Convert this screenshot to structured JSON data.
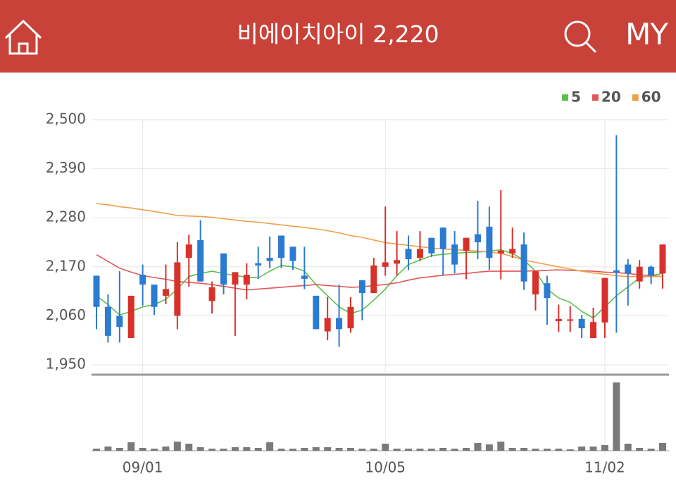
{
  "header": {
    "title": "비에이치아이 2,220",
    "menu": "MY"
  },
  "chart_data": {
    "type": "candlestick",
    "categories": [
      null,
      null,
      null,
      null,
      "09/01",
      null,
      null,
      null,
      null,
      null,
      null,
      null,
      null,
      null,
      null,
      null,
      null,
      null,
      null,
      null,
      null,
      null,
      null,
      null,
      null,
      "10/05",
      null,
      null,
      null,
      null,
      null,
      null,
      null,
      null,
      null,
      null,
      null,
      null,
      null,
      null,
      null,
      null,
      null,
      null,
      "11/02",
      null,
      null,
      null,
      null,
      null
    ],
    "open": [
      2150,
      2080,
      2060,
      2010,
      2152,
      2130,
      2105,
      2060,
      2190,
      2230,
      2093,
      2200,
      2130,
      2130,
      2178,
      2190,
      2240,
      2215,
      2150,
      2105,
      2025,
      2055,
      2032,
      2140,
      2111,
      2170,
      2177,
      2210,
      2190,
      2235,
      2258,
      2220,
      2206,
      2243,
      2260,
      2200,
      2200,
      2220,
      2108,
      2133,
      2048,
      2049,
      2053,
      2010,
      2045,
      2162,
      2175,
      2137,
      2170,
      2155
    ],
    "high": [
      2150,
      2108,
      2160,
      2105,
      2175,
      2130,
      2175,
      2225,
      2242,
      2275,
      2137,
      2200,
      2158,
      2178,
      2215,
      2238,
      2240,
      2215,
      2215,
      2105,
      2102,
      2130,
      2102,
      2140,
      2190,
      2305,
      2250,
      2240,
      2250,
      2235,
      2258,
      2250,
      2235,
      2318,
      2305,
      2342,
      2258,
      2247,
      2160,
      2150,
      2085,
      2082,
      2062,
      2078,
      2145,
      2465,
      2187,
      2185,
      2173,
      2220
    ],
    "low": [
      2030,
      2000,
      2000,
      2010,
      2083,
      2062,
      2086,
      2030,
      2125,
      2137,
      2065,
      2108,
      2015,
      2097,
      2143,
      2167,
      2167,
      2163,
      2120,
      2030,
      2005,
      1990,
      2022,
      2050,
      2111,
      2150,
      2150,
      2163,
      2183,
      2192,
      2150,
      2155,
      2142,
      2187,
      2163,
      2142,
      2190,
      2118,
      2072,
      2040,
      2024,
      2024,
      2010,
      2010,
      2010,
      2022,
      2083,
      2121,
      2131,
      2121
    ],
    "close": [
      2080,
      2015,
      2035,
      2105,
      2130,
      2080,
      2120,
      2180,
      2220,
      2137,
      2124,
      2130,
      2158,
      2152,
      2173,
      2183,
      2190,
      2183,
      2143,
      2030,
      2055,
      2030,
      2080,
      2111,
      2173,
      2180,
      2185,
      2187,
      2210,
      2200,
      2210,
      2175,
      2235,
      2225,
      2190,
      2206,
      2210,
      2137,
      2160,
      2100,
      2053,
      2052,
      2032,
      2046,
      2145,
      2157,
      2155,
      2170,
      2150,
      2220
    ],
    "up_color": "#d8312b",
    "down_color": "#2b7bd1",
    "series": [
      {
        "name": "5",
        "color": "#5cbf4c",
        "values": [
          2105,
          2085,
          2062,
          2070,
          2080,
          2085,
          2097,
          2120,
          2148,
          2155,
          2160,
          2155,
          2150,
          2147,
          2145,
          2160,
          2173,
          2170,
          2160,
          2130,
          2105,
          2080,
          2065,
          2073,
          2095,
          2120,
          2150,
          2175,
          2185,
          2195,
          2198,
          2200,
          2202,
          2203,
          2205,
          2208,
          2200,
          2185,
          2160,
          2120,
          2100,
          2090,
          2070,
          2055,
          2080,
          2105,
          2125,
          2145,
          2150,
          2155
        ]
      },
      {
        "name": "20",
        "color": "#e25757",
        "values": [
          2197,
          2182,
          2167,
          2158,
          2150,
          2146,
          2142,
          2137,
          2135,
          2133,
          2130,
          2126,
          2122,
          2118,
          2120,
          2122,
          2124,
          2126,
          2128,
          2130,
          2128,
          2126,
          2124,
          2125,
          2128,
          2130,
          2134,
          2140,
          2145,
          2148,
          2151,
          2153,
          2155,
          2158,
          2160,
          2160,
          2160,
          2160,
          2161,
          2162,
          2163,
          2162,
          2161,
          2160,
          2158,
          2157,
          2155,
          2152,
          2150,
          2148
        ]
      },
      {
        "name": "60",
        "color": "#f0a048",
        "values": [
          2312,
          2309,
          2305,
          2302,
          2298,
          2294,
          2290,
          2285,
          2284,
          2283,
          2281,
          2278,
          2275,
          2272,
          2270,
          2267,
          2264,
          2261,
          2258,
          2255,
          2251,
          2246,
          2240,
          2236,
          2230,
          2224,
          2221,
          2218,
          2215,
          2212,
          2210,
          2208,
          2207,
          2205,
          2203,
          2200,
          2193,
          2185,
          2180,
          2175,
          2170,
          2165,
          2160,
          2156,
          2153,
          2150,
          2148,
          2148,
          2148,
          2148
        ]
      }
    ],
    "volume": {
      "color": "#7a7a7a",
      "ylim": [
        0,
        100
      ],
      "values": [
        3,
        6,
        4,
        12,
        4,
        3,
        6,
        13,
        10,
        5,
        3,
        3,
        5,
        5,
        4,
        12,
        3,
        3,
        4,
        5,
        5,
        4,
        4,
        3,
        3,
        10,
        3,
        3,
        3,
        3,
        4,
        3,
        4,
        11,
        9,
        13,
        4,
        4,
        3,
        3,
        3,
        2,
        6,
        6,
        8,
        97,
        10,
        4,
        3,
        11
      ]
    },
    "ylim": [
      1931,
      2500
    ],
    "yticks": [
      {
        "value": 1950,
        "label": "1,950"
      },
      {
        "value": 2060,
        "label": "2,060"
      },
      {
        "value": 2170,
        "label": "2,170"
      },
      {
        "value": 2280,
        "label": "2,280"
      },
      {
        "value": 2390,
        "label": "2,390"
      },
      {
        "value": 2500,
        "label": "2,500"
      }
    ],
    "grid": true
  }
}
